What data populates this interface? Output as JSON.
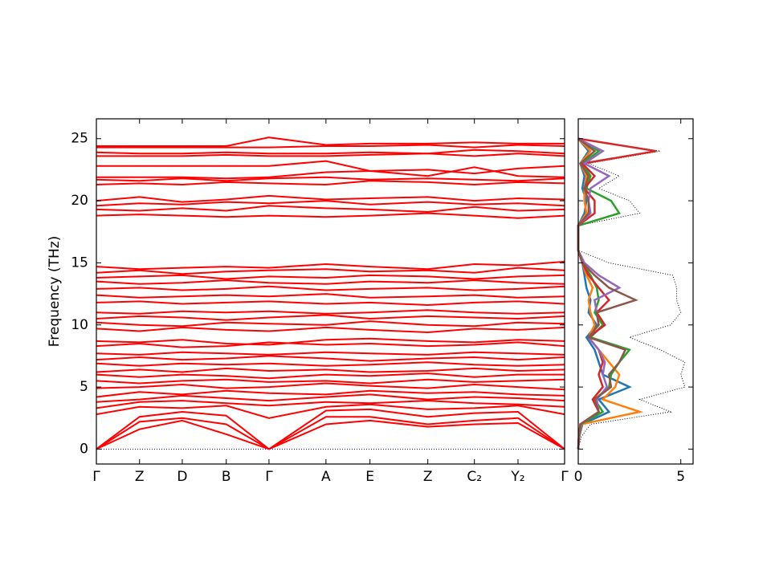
{
  "chart_data": [
    {
      "type": "bands",
      "ylabel": "Frequency (THz)",
      "color": "#ff0000",
      "x": [
        0,
        1,
        1.99,
        3.01,
        4,
        5.32,
        6.34,
        7.68,
        8.76,
        9.77,
        10.85
      ],
      "xlim": [
        0,
        10.85
      ],
      "xticks": [
        {
          "value": 0,
          "label": "Γ"
        },
        {
          "value": 1,
          "label": "Z"
        },
        {
          "value": 1.99,
          "label": "D"
        },
        {
          "value": 3.01,
          "label": "B"
        },
        {
          "value": 4,
          "label": "Γ"
        },
        {
          "value": 5.32,
          "label": "A"
        },
        {
          "value": 6.34,
          "label": "E"
        },
        {
          "value": 7.68,
          "label": "Z"
        },
        {
          "value": 8.76,
          "label": "C₂"
        },
        {
          "value": 9.77,
          "label": "Y₂"
        },
        {
          "value": 10.85,
          "label": "Γ"
        }
      ],
      "ylim": [
        -1.2,
        26.6
      ],
      "yticks": [
        0,
        5,
        10,
        15,
        20,
        25
      ],
      "hlines": [
        {
          "value": 0,
          "color": "#0000ff"
        }
      ],
      "series": [
        {
          "values": [
            0,
            2.2,
            2.5,
            2.0,
            0,
            2.6,
            2.6,
            2.0,
            2.3,
            2.5,
            0
          ]
        },
        {
          "values": [
            0,
            1.6,
            2.3,
            1.2,
            0,
            2.0,
            2.3,
            1.8,
            2.0,
            2.1,
            0
          ]
        },
        {
          "values": [
            0,
            2.6,
            3.0,
            2.7,
            0,
            3.1,
            3.2,
            2.6,
            2.9,
            3.0,
            0
          ]
        },
        {
          "values": [
            2.8,
            3.4,
            3.3,
            3.5,
            2.5,
            3.4,
            3.6,
            3.2,
            3.3,
            3.5,
            2.8
          ]
        },
        {
          "values": [
            3.3,
            3.8,
            3.9,
            3.7,
            3.5,
            3.8,
            3.7,
            3.9,
            3.7,
            3.6,
            3.4
          ]
        },
        {
          "values": [
            3.8,
            4.0,
            4.3,
            4.1,
            3.9,
            4.2,
            4.4,
            4.0,
            4.2,
            4.1,
            3.9
          ]
        },
        {
          "values": [
            4.2,
            4.6,
            4.4,
            4.7,
            4.5,
            4.4,
            4.7,
            4.5,
            4.6,
            4.4,
            4.3
          ]
        },
        {
          "values": [
            4.9,
            5.0,
            5.2,
            4.9,
            5.0,
            5.3,
            5.1,
            4.9,
            5.2,
            5.0,
            4.8
          ]
        },
        {
          "values": [
            5.5,
            5.3,
            5.5,
            5.6,
            5.4,
            5.5,
            5.3,
            5.6,
            5.4,
            5.5,
            5.6
          ]
        },
        {
          "values": [
            6.0,
            5.8,
            6.0,
            5.9,
            5.7,
            6.0,
            5.9,
            6.1,
            5.8,
            6.0,
            6.0
          ]
        },
        {
          "values": [
            6.2,
            6.4,
            6.2,
            6.5,
            6.3,
            6.4,
            6.2,
            6.3,
            6.5,
            6.3,
            6.4
          ]
        },
        {
          "values": [
            6.9,
            6.7,
            6.9,
            6.8,
            6.9,
            6.7,
            6.8,
            7.0,
            6.8,
            6.7,
            6.8
          ]
        },
        {
          "values": [
            7.2,
            7.4,
            7.2,
            7.3,
            7.5,
            7.3,
            7.1,
            7.3,
            7.4,
            7.2,
            7.4
          ]
        },
        {
          "values": [
            7.7,
            7.6,
            7.8,
            7.7,
            7.6,
            7.8,
            7.7,
            7.6,
            7.8,
            7.7,
            7.6
          ]
        },
        {
          "values": [
            8.3,
            8.5,
            8.2,
            8.3,
            8.6,
            8.4,
            8.5,
            8.3,
            8.4,
            8.6,
            8.3
          ]
        },
        {
          "values": [
            8.7,
            8.6,
            8.8,
            8.5,
            8.4,
            8.8,
            8.9,
            8.7,
            8.6,
            8.8,
            8.7
          ]
        },
        {
          "values": [
            9.7,
            9.5,
            9.8,
            9.6,
            9.5,
            9.8,
            9.6,
            9.4,
            9.7,
            9.6,
            9.8
          ]
        },
        {
          "values": [
            10.2,
            10.0,
            9.9,
            10.2,
            10.1,
            10.0,
            10.3,
            10.0,
            9.9,
            10.2,
            10.1
          ]
        },
        {
          "values": [
            10.5,
            10.7,
            10.6,
            10.4,
            10.6,
            10.8,
            10.5,
            10.7,
            10.6,
            10.5,
            10.7
          ]
        },
        {
          "values": [
            11.0,
            10.9,
            11.1,
            11.0,
            11.1,
            10.9,
            11.0,
            11.2,
            11.0,
            10.9,
            11.0
          ]
        },
        {
          "values": [
            11.8,
            11.9,
            11.7,
            11.8,
            11.9,
            11.7,
            11.8,
            11.6,
            11.8,
            11.9,
            11.7
          ]
        },
        {
          "values": [
            12.4,
            12.2,
            12.3,
            12.4,
            12.3,
            12.5,
            12.2,
            12.3,
            12.4,
            12.2,
            12.3
          ]
        },
        {
          "values": [
            12.9,
            13.0,
            12.8,
            12.9,
            13.1,
            12.8,
            12.9,
            13.0,
            12.8,
            12.9,
            13.1
          ]
        },
        {
          "values": [
            13.5,
            13.3,
            13.4,
            13.6,
            13.4,
            13.3,
            13.5,
            13.4,
            13.6,
            13.4,
            13.3
          ]
        },
        {
          "values": [
            13.8,
            13.9,
            14.0,
            13.7,
            13.9,
            13.8,
            14.0,
            13.9,
            13.7,
            13.9,
            14.0
          ]
        },
        {
          "values": [
            14.2,
            14.4,
            14.1,
            14.3,
            14.4,
            14.5,
            14.3,
            14.4,
            14.2,
            14.6,
            14.4
          ]
        },
        {
          "values": [
            14.7,
            14.5,
            14.6,
            14.7,
            14.6,
            14.9,
            14.7,
            14.5,
            14.9,
            14.8,
            15.1
          ]
        },
        {
          "values": [
            18.8,
            18.9,
            18.8,
            18.7,
            18.8,
            18.7,
            18.8,
            19.0,
            18.8,
            18.6,
            18.8
          ]
        },
        {
          "values": [
            19.3,
            19.2,
            19.4,
            19.2,
            19.6,
            19.4,
            19.3,
            19.1,
            19.5,
            19.2,
            19.3
          ]
        },
        {
          "values": [
            19.6,
            19.8,
            19.7,
            19.9,
            19.8,
            20.0,
            19.7,
            19.9,
            19.7,
            19.8,
            19.6
          ]
        },
        {
          "values": [
            20.0,
            20.3,
            19.9,
            20.1,
            20.4,
            20.1,
            20.2,
            20.3,
            20.0,
            20.2,
            20.1
          ]
        },
        {
          "values": [
            21.3,
            21.4,
            21.3,
            21.5,
            21.4,
            21.3,
            21.6,
            21.5,
            21.3,
            21.5,
            21.4
          ]
        },
        {
          "values": [
            21.7,
            21.6,
            21.8,
            21.6,
            21.8,
            21.9,
            21.7,
            21.8,
            21.7,
            21.6,
            21.8
          ]
        },
        {
          "values": [
            21.9,
            21.9,
            21.9,
            21.8,
            21.9,
            22.3,
            22.4,
            22.0,
            22.7,
            22.0,
            21.9
          ]
        },
        {
          "values": [
            22.8,
            22.8,
            22.8,
            22.8,
            22.8,
            23.2,
            22.4,
            22.5,
            22.2,
            22.6,
            22.8
          ]
        },
        {
          "values": [
            23.6,
            23.6,
            23.6,
            23.7,
            23.6,
            23.6,
            23.7,
            23.8,
            23.6,
            23.8,
            23.6
          ]
        },
        {
          "values": [
            23.9,
            23.8,
            23.8,
            23.9,
            23.8,
            23.8,
            23.9,
            23.8,
            24.1,
            24.0,
            23.8
          ]
        },
        {
          "values": [
            24.3,
            24.3,
            24.3,
            24.3,
            24.3,
            24.4,
            24.4,
            24.5,
            24.3,
            24.5,
            24.4
          ]
        },
        {
          "values": [
            24.4,
            24.4,
            24.4,
            24.4,
            25.1,
            24.5,
            24.6,
            24.6,
            24.7,
            24.6,
            24.6
          ]
        }
      ]
    },
    {
      "type": "dos",
      "frequencies": [
        0,
        1,
        2,
        3,
        4,
        5,
        6,
        7,
        8,
        9,
        10,
        11,
        12,
        13,
        14,
        15,
        16,
        17,
        18,
        19,
        20,
        21,
        22,
        23,
        24,
        25
      ],
      "xlim": [
        0,
        5.6
      ],
      "xticks": [
        0,
        5
      ],
      "ylim": [
        -1.2,
        26.6
      ],
      "yticks": [
        0,
        5,
        10,
        15,
        20,
        25
      ],
      "total": {
        "color": "#000000",
        "values": [
          0,
          0.15,
          0.6,
          4.5,
          3.0,
          5.2,
          5.0,
          5.2,
          4.0,
          2.5,
          4.5,
          5.0,
          4.8,
          4.8,
          4.6,
          1.5,
          0,
          0,
          0,
          3.0,
          2.5,
          1.0,
          2.0,
          0.5,
          4.0,
          0
        ]
      },
      "series": [
        {
          "color": "#1f77b4",
          "values": [
            0,
            0.05,
            0.2,
            1.5,
            1.0,
            2.5,
            1.2,
            1.0,
            0.8,
            0.4,
            0.9,
            0.5,
            0.6,
            0.4,
            0.3,
            0.2,
            0,
            0,
            0,
            0.3,
            0.4,
            0.2,
            0.3,
            0.1,
            0.5,
            0
          ]
        },
        {
          "color": "#ff7f0e",
          "values": [
            0,
            0.04,
            0.15,
            3.0,
            1.2,
            1.8,
            2.0,
            1.5,
            1.0,
            0.5,
            0.8,
            0.6,
            0.5,
            0.7,
            0.4,
            0.2,
            0,
            0,
            0,
            0.4,
            0.3,
            0.3,
            0.4,
            0.1,
            0.6,
            0
          ]
        },
        {
          "color": "#2ca02c",
          "values": [
            0,
            0.03,
            0.12,
            1.2,
            0.8,
            1.5,
            1.6,
            2.0,
            2.5,
            0.6,
            1.2,
            0.8,
            1.0,
            0.9,
            0.6,
            0.2,
            0,
            0,
            0,
            2.0,
            1.6,
            0.4,
            0.6,
            0.2,
            1.0,
            0
          ]
        },
        {
          "color": "#d62728",
          "values": [
            0,
            0.03,
            0.1,
            1.0,
            0.7,
            1.2,
            1.0,
            1.2,
            1.0,
            0.5,
            1.3,
            0.9,
            1.5,
            1.0,
            0.5,
            0.2,
            0,
            0,
            0,
            0.8,
            0.8,
            0.3,
            0.8,
            0.2,
            3.8,
            0
          ]
        },
        {
          "color": "#9467bd",
          "values": [
            0,
            0.03,
            0.1,
            1.0,
            0.9,
            1.4,
            1.2,
            1.3,
            1.0,
            0.5,
            1.0,
            0.9,
            0.8,
            2.0,
            1.0,
            0.3,
            0,
            0,
            0,
            0.6,
            0.5,
            0.6,
            1.5,
            0.3,
            1.2,
            0
          ]
        },
        {
          "color": "#8c564b",
          "values": [
            0,
            0.03,
            0.1,
            1.0,
            0.8,
            1.6,
            1.5,
            2.0,
            2.3,
            0.5,
            1.0,
            0.9,
            2.8,
            1.5,
            0.8,
            0.2,
            0,
            0,
            0,
            0.5,
            0.5,
            0.3,
            0.5,
            0.1,
            0.8,
            0
          ]
        }
      ]
    }
  ]
}
